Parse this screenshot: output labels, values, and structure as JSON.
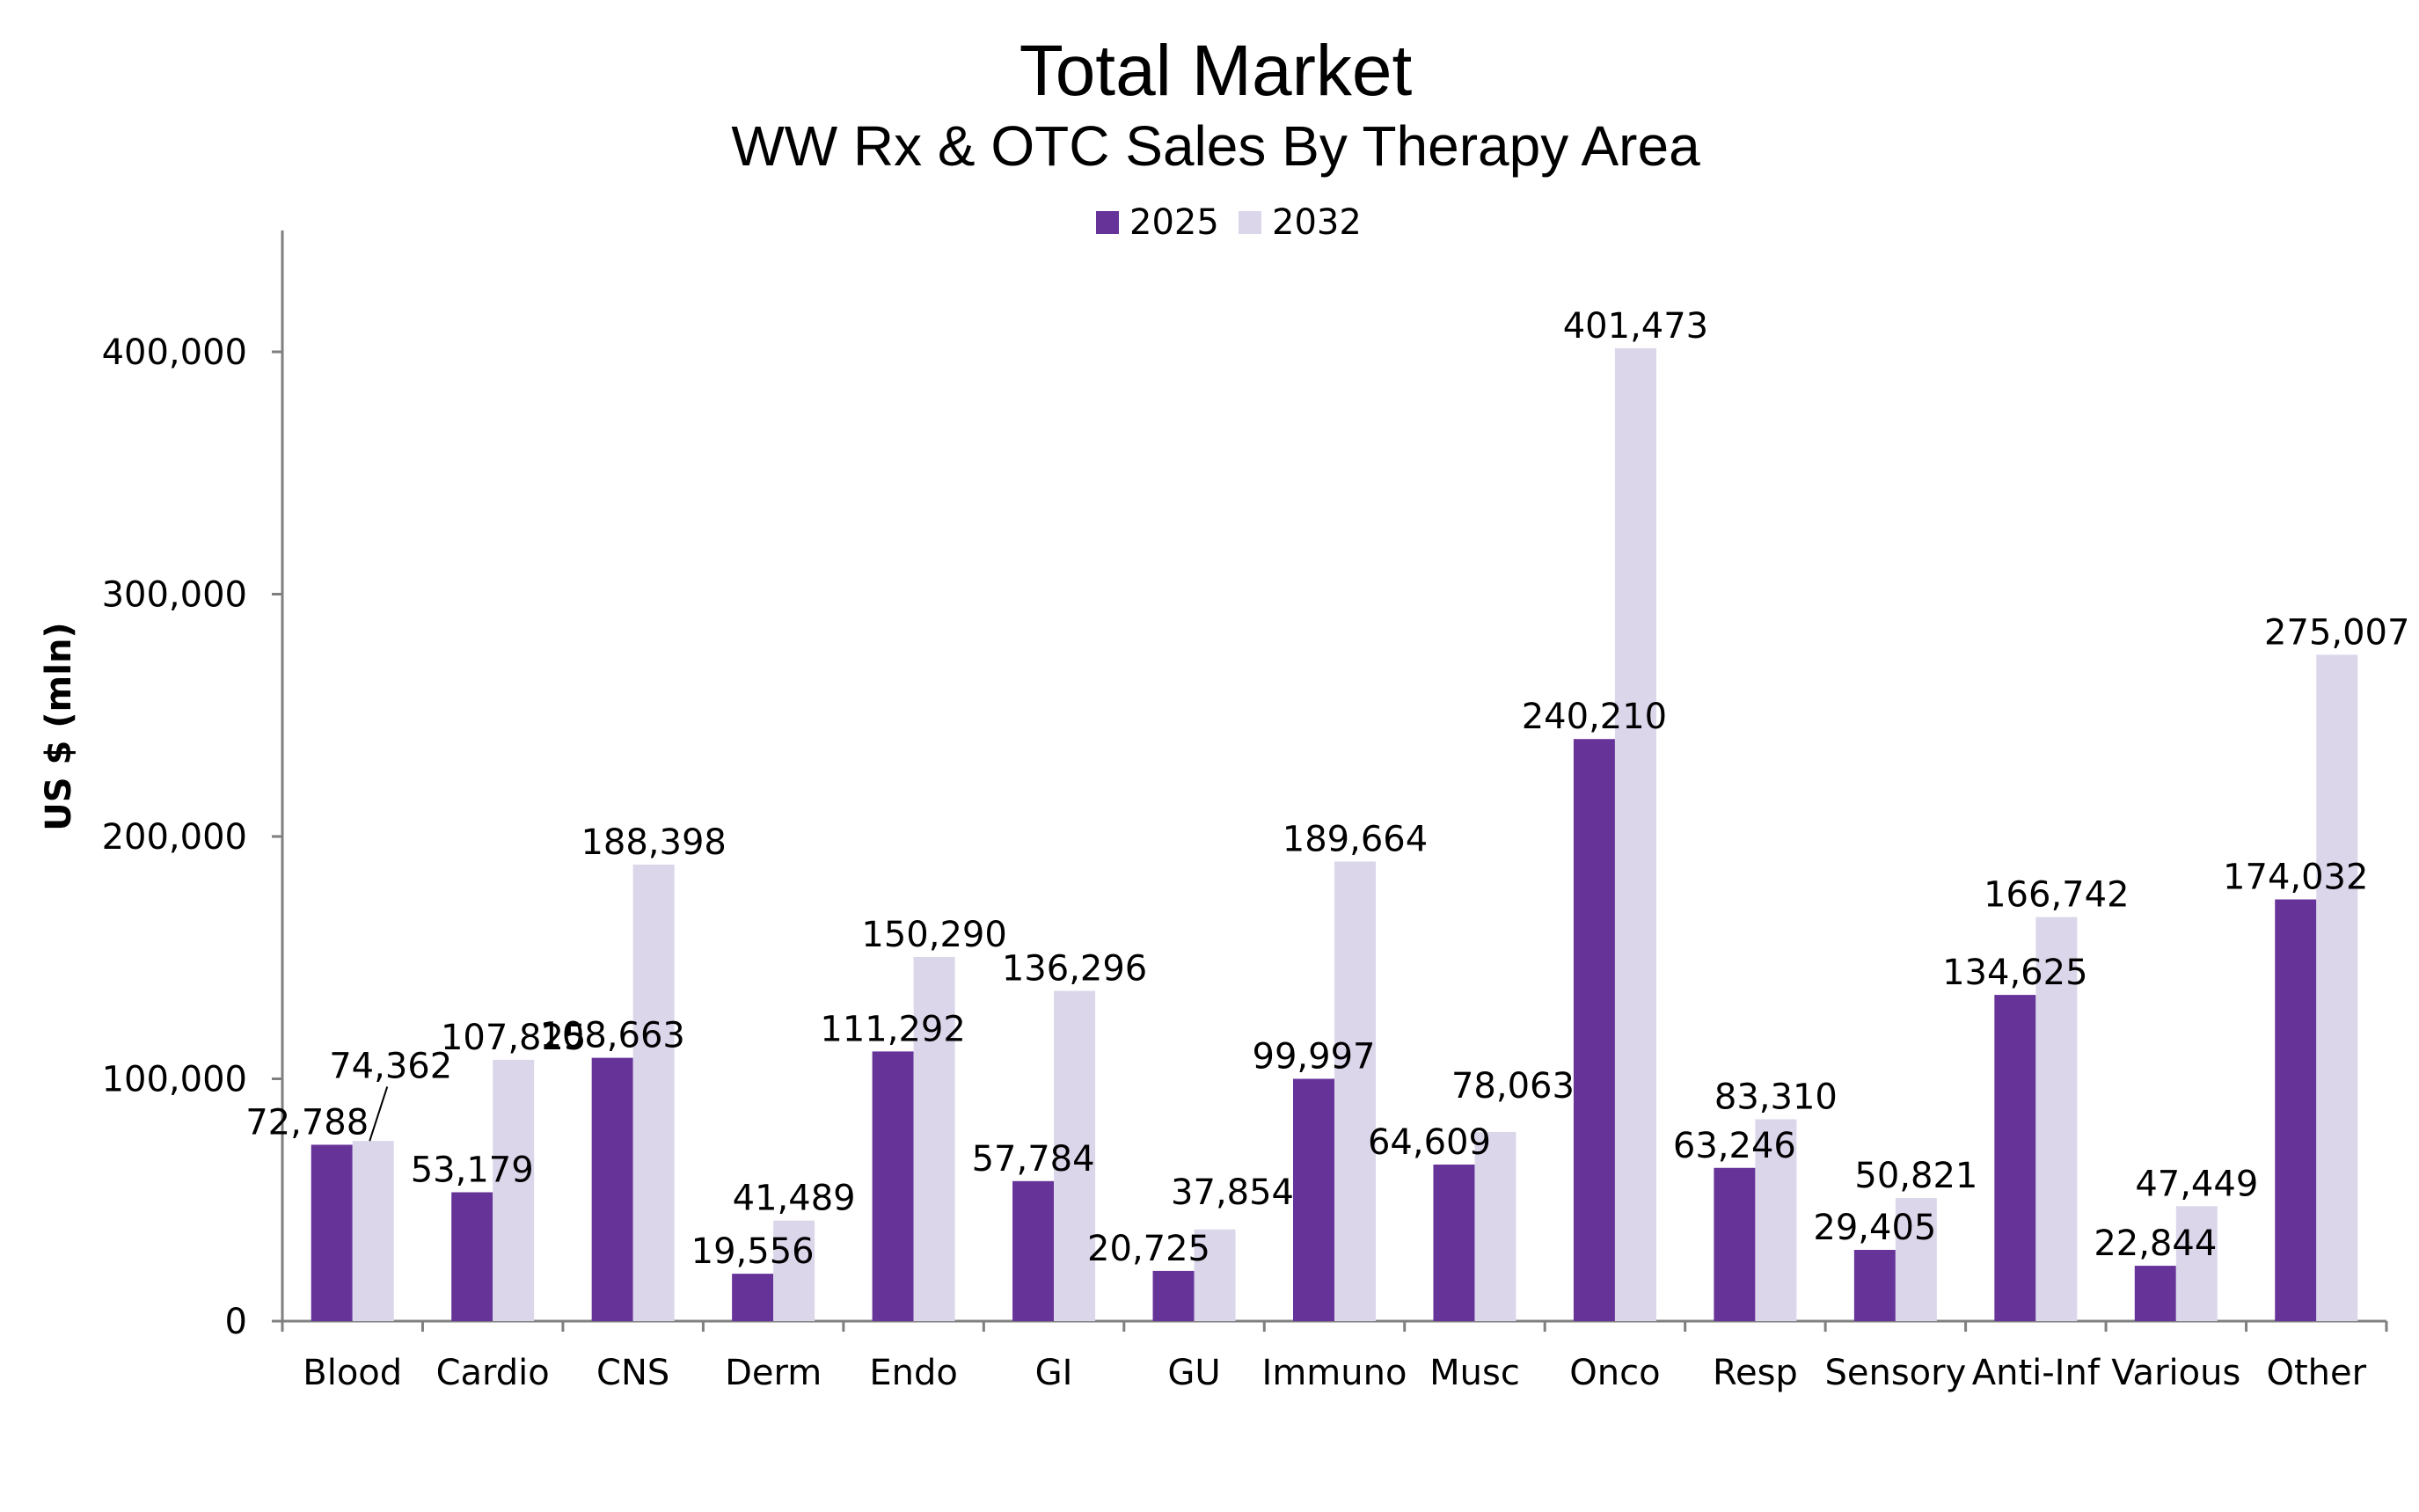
{
  "chart_data": {
    "type": "bar",
    "title": "Total Market",
    "subtitle": "WW Rx & OTC Sales By Therapy Area",
    "xlabel": "",
    "ylabel": "US $ (mln)",
    "ylim": [
      0,
      450000
    ],
    "yticks": [
      0,
      100000,
      200000,
      300000,
      400000
    ],
    "ytick_labels": [
      "0",
      "100,000",
      "200,000",
      "300,000",
      "400,000"
    ],
    "legend_position": "top-center",
    "grid": false,
    "categories": [
      "Blood",
      "Cardio",
      "CNS",
      "Derm",
      "Endo",
      "GI",
      "GU",
      "Immuno",
      "Musc",
      "Onco",
      "Resp",
      "Sensory",
      "Anti-Inf",
      "Various",
      "Other"
    ],
    "series": [
      {
        "name": "2025",
        "color": "#663399",
        "values": [
          72788,
          53179,
          108663,
          19556,
          111292,
          57784,
          20725,
          99997,
          64609,
          240210,
          63246,
          29405,
          134625,
          22844,
          174032
        ],
        "labels": [
          "72,788",
          "53,179",
          "108,663",
          "19,556",
          "111,292",
          "57,784",
          "20,725",
          "99,997",
          "64,609",
          "240,210",
          "63,246",
          "29,405",
          "134,625",
          "22,844",
          "174,032"
        ]
      },
      {
        "name": "2032",
        "color": "#dcd6eb",
        "values": [
          74362,
          107825,
          188398,
          41489,
          150290,
          136296,
          37854,
          189664,
          78063,
          401473,
          83310,
          50821,
          166742,
          47449,
          275007
        ],
        "labels": [
          "74,362",
          "107,825",
          "188,398",
          "41,489",
          "150,290",
          "136,296",
          "37,854",
          "189,664",
          "78,063",
          "401,473",
          "83,310",
          "50,821",
          "166,742",
          "47,449",
          "275,007"
        ]
      }
    ]
  }
}
